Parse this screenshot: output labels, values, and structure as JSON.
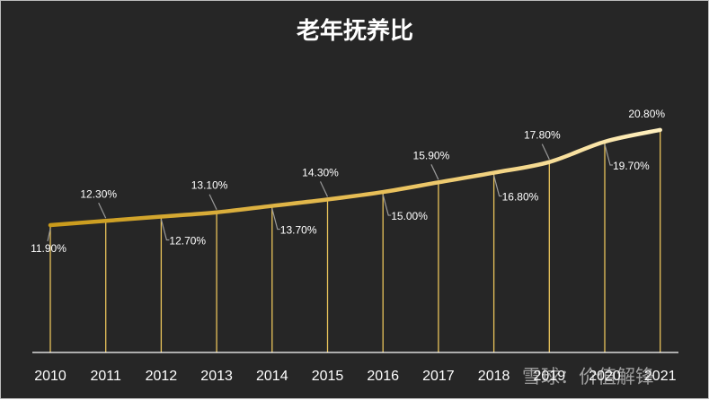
{
  "chart_data": {
    "type": "line",
    "title": "老年抚养比",
    "xlabel": "",
    "ylabel": "",
    "categories": [
      "2010",
      "2011",
      "2012",
      "2013",
      "2014",
      "2015",
      "2016",
      "2017",
      "2018",
      "2019",
      "2020",
      "2021"
    ],
    "series": [
      {
        "values": [
          11.9,
          12.3,
          12.7,
          13.1,
          13.7,
          14.3,
          15.0,
          15.9,
          16.8,
          17.8,
          19.7,
          20.8
        ],
        "labels": [
          "11.90%",
          "12.30%",
          "12.70%",
          "13.10%",
          "13.70%",
          "14.30%",
          "15.00%",
          "15.90%",
          "16.80%",
          "17.80%",
          "19.70%",
          "20.80%"
        ]
      }
    ],
    "ylim": [
      0,
      22.8
    ],
    "grid": false,
    "legend": "none",
    "colors": {
      "background": "#262626",
      "line_start": "#c99a1a",
      "line_end": "#ffe9a6",
      "drop_line": "#e8c25a",
      "text": "#ffffff",
      "axis": "#ffffff",
      "leader": "#9a9a9a"
    }
  },
  "watermark": "雪球：价值解锋"
}
